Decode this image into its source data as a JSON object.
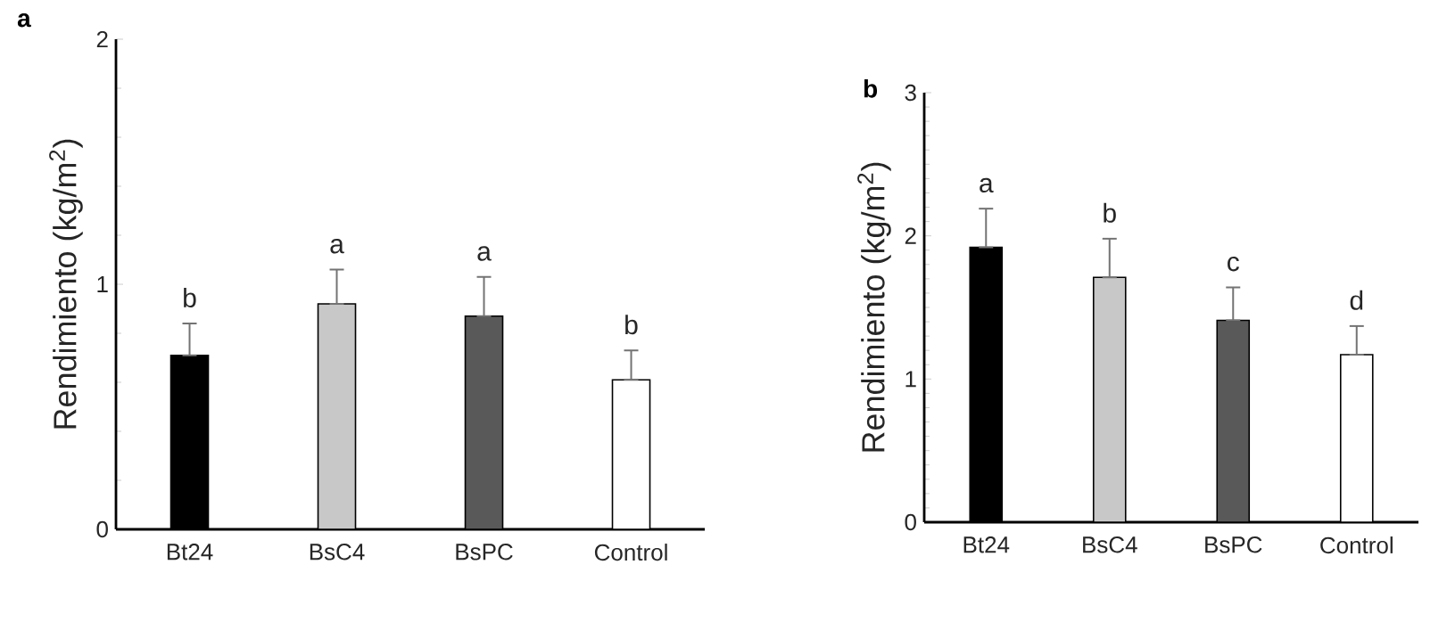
{
  "chart_data": [
    {
      "type": "bar",
      "title": "a",
      "ylabel": "Rendimiento (kg/m$^{2}$)",
      "categories": [
        "Bt24",
        "BsC4",
        "BsPC",
        "Control"
      ],
      "values": [
        0.71,
        0.92,
        0.87,
        0.61
      ],
      "errors": [
        [
          0.71,
          0.84
        ],
        [
          0.92,
          1.06
        ],
        [
          0.87,
          1.03
        ],
        [
          0.61,
          0.73
        ]
      ],
      "colors": [
        "#000000",
        "#c8c8c8",
        "#595959",
        "#ffffff"
      ],
      "ylim": [
        0,
        2
      ],
      "yticks": [
        0,
        1,
        2
      ],
      "annotations": [
        "b",
        "a",
        "a",
        "b"
      ]
    },
    {
      "type": "bar",
      "title": "b",
      "ylabel": "Rendimiento (kg/m$^{2}$)",
      "categories": [
        "Bt24",
        "BsC4",
        "BsPC",
        "Control"
      ],
      "values": [
        1.92,
        1.71,
        1.41,
        1.17
      ],
      "errors": [
        [
          1.92,
          2.19
        ],
        [
          1.71,
          1.98
        ],
        [
          1.41,
          1.64
        ],
        [
          1.17,
          1.37
        ]
      ],
      "colors": [
        "#000000",
        "#c8c8c8",
        "#595959",
        "#ffffff"
      ],
      "ylim": [
        0,
        3
      ],
      "yticks": [
        0,
        1,
        2,
        3
      ],
      "annotations": [
        "a",
        "b",
        "c",
        "d"
      ]
    }
  ]
}
